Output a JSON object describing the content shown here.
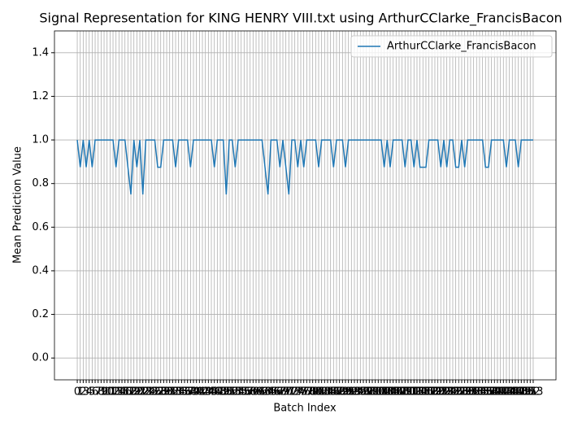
{
  "chart_data": {
    "type": "line",
    "title": "Signal Representation for KING HENRY VIII.txt using ArthurCClarke_FrancisBacon",
    "x_label": "Batch Index",
    "y_label": "Mean Prediction Value",
    "categories": [
      "0",
      "1",
      "2",
      "3",
      "4",
      "5",
      "6",
      "7",
      "8",
      "9",
      "10",
      "11",
      "12",
      "13",
      "14",
      "15",
      "16",
      "17",
      "18",
      "19",
      "20",
      "21",
      "22",
      "23",
      "24",
      "25",
      "26",
      "27",
      "28",
      "29",
      "30",
      "31",
      "32",
      "33",
      "34",
      "35",
      "36",
      "37",
      "38",
      "39",
      "40",
      "41",
      "42",
      "43",
      "44",
      "45",
      "46",
      "47",
      "48",
      "49",
      "50",
      "51",
      "52",
      "53",
      "54",
      "55",
      "56",
      "57",
      "58",
      "59",
      "60",
      "61",
      "62",
      "63",
      "64",
      "65",
      "66",
      "67",
      "68",
      "69",
      "70",
      "71",
      "72",
      "73",
      "74",
      "75",
      "76",
      "77",
      "78",
      "79",
      "80",
      "81",
      "82",
      "83",
      "84",
      "85",
      "86",
      "87",
      "88",
      "89",
      "90",
      "91",
      "92",
      "93",
      "94",
      "95",
      "96",
      "97",
      "98",
      "99",
      "100",
      "101",
      "102",
      "103",
      "104",
      "105",
      "106",
      "107",
      "108",
      "109",
      "110",
      "111",
      "112",
      "113",
      "114",
      "115",
      "116",
      "117",
      "118",
      "119",
      "120",
      "121",
      "122",
      "123",
      "124",
      "125",
      "126",
      "127",
      "128",
      "129",
      "130",
      "131",
      "132",
      "133",
      "134",
      "135",
      "136",
      "137",
      "138",
      "139",
      "140",
      "141",
      "142",
      "143",
      "144",
      "145",
      "146",
      "147",
      "148",
      "149",
      "150",
      "151",
      "152",
      "153"
    ],
    "series": [
      {
        "name": "ArthurCClarke_FrancisBacon",
        "color": "#1f77b4",
        "values": [
          1,
          0.875,
          1,
          0.875,
          1,
          0.875,
          1,
          1,
          1,
          1,
          1,
          1,
          1,
          0.875,
          1,
          1,
          1,
          0.875,
          0.75,
          1,
          0.875,
          1,
          0.75,
          1,
          1,
          1,
          1,
          0.875,
          0.875,
          1,
          1,
          1,
          1,
          0.875,
          1,
          1,
          1,
          1,
          0.875,
          1,
          1,
          1,
          1,
          1,
          1,
          1,
          0.875,
          1,
          1,
          1,
          0.75,
          1,
          1,
          0.875,
          1,
          1,
          1,
          1,
          1,
          1,
          1,
          1,
          1,
          0.875,
          0.75,
          1,
          1,
          1,
          0.875,
          1,
          0.875,
          0.75,
          1,
          1,
          0.875,
          1,
          0.875,
          1,
          1,
          1,
          1,
          0.875,
          1,
          1,
          1,
          1,
          0.875,
          1,
          1,
          1,
          0.875,
          1,
          1,
          1,
          1,
          1,
          1,
          1,
          1,
          1,
          1,
          1,
          1,
          0.875,
          1,
          0.875,
          1,
          1,
          1,
          1,
          0.875,
          1,
          1,
          0.875,
          1,
          0.875,
          0.875,
          0.875,
          1,
          1,
          1,
          1,
          0.875,
          1,
          0.875,
          1,
          1,
          0.875,
          0.875,
          1,
          0.875,
          1,
          1,
          1,
          1,
          1,
          1,
          0.875,
          0.875,
          1,
          1,
          1,
          1,
          1,
          0.875,
          1,
          1,
          1,
          0.875,
          1,
          1,
          1,
          1,
          1
        ]
      }
    ],
    "xlim": [
      -7.65,
      160.65
    ],
    "ylim": [
      -0.1,
      1.5
    ],
    "yticks": [
      {
        "value": 0,
        "label": "0.0"
      },
      {
        "value": 0.2,
        "label": "0.2"
      },
      {
        "value": 0.4,
        "label": "0.4"
      },
      {
        "value": 0.6,
        "label": "0.6"
      },
      {
        "value": 0.8,
        "label": "0.8"
      },
      {
        "value": 1,
        "label": "1.0"
      },
      {
        "value": 1.2,
        "label": "1.2"
      },
      {
        "value": 1.4,
        "label": "1.4"
      }
    ],
    "grid": true,
    "legend": "upper right"
  }
}
